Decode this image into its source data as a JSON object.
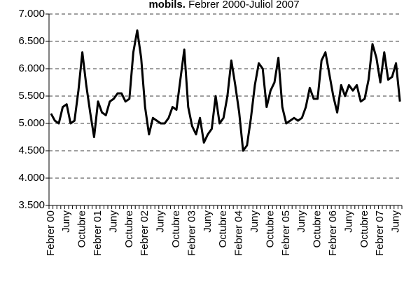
{
  "chart_data": {
    "type": "line",
    "title": "mobils.",
    "subtitle": "Febrer 2000-Juliol 2007",
    "categories": [
      "Febrer 00",
      null,
      null,
      null,
      "Juny",
      null,
      null,
      null,
      "Octubre",
      null,
      null,
      null,
      "Febrer 01",
      null,
      null,
      null,
      "Juny",
      null,
      null,
      null,
      "Octubre",
      null,
      null,
      null,
      "Febrer 02",
      null,
      null,
      null,
      "Juny",
      null,
      null,
      null,
      "Octubre",
      null,
      null,
      null,
      "Febrer 03",
      null,
      null,
      null,
      "Juny",
      null,
      null,
      null,
      "Octubre",
      null,
      null,
      null,
      "Febrer 04",
      null,
      null,
      null,
      "Juny",
      null,
      null,
      null,
      "Octubre",
      null,
      null,
      null,
      "Febrer 05",
      null,
      null,
      null,
      "Juny",
      null,
      null,
      null,
      "Octubre",
      null,
      null,
      null,
      "Febrer 06",
      null,
      null,
      null,
      "Juny",
      null,
      null,
      null,
      "Octubre",
      null,
      null,
      null,
      "Febrer 07",
      null,
      null,
      null,
      "Juny",
      null
    ],
    "series": [
      {
        "name": null,
        "color": "#000000",
        "values": [
          5180,
          5050,
          5000,
          5300,
          5350,
          5000,
          5050,
          5600,
          6300,
          5700,
          5200,
          4750,
          5400,
          5200,
          5150,
          5400,
          5450,
          5550,
          5550,
          5400,
          5450,
          6300,
          6700,
          6200,
          5300,
          4800,
          5100,
          5050,
          5000,
          5000,
          5100,
          5300,
          5250,
          5800,
          6350,
          5300,
          4950,
          4800,
          5100,
          4650,
          4800,
          4900,
          5500,
          5000,
          5100,
          5500,
          6150,
          5700,
          5200,
          4500,
          4600,
          5100,
          5700,
          6100,
          6000,
          5300,
          5600,
          5750,
          6200,
          5300,
          5000,
          5050,
          5100,
          5050,
          5100,
          5300,
          5650,
          5450,
          5450,
          6150,
          6300,
          5900,
          5500,
          5200,
          5700,
          5500,
          5700,
          5600,
          5700,
          5400,
          5450,
          5800,
          6450,
          6200,
          5750,
          6300,
          5800,
          5850,
          6100,
          5400
        ]
      }
    ],
    "ylim": [
      3500,
      7000
    ],
    "yticks": [
      {
        "value": 3500,
        "label": "3.500"
      },
      {
        "value": 4000,
        "label": "4.000"
      },
      {
        "value": 4500,
        "label": "4.500"
      },
      {
        "value": 5000,
        "label": "5.000"
      },
      {
        "value": 5500,
        "label": "5.500"
      },
      {
        "value": 6000,
        "label": "6.000"
      },
      {
        "value": 6500,
        "label": "6.500"
      },
      {
        "value": 7000,
        "label": "7.000"
      }
    ],
    "grid": true
  }
}
